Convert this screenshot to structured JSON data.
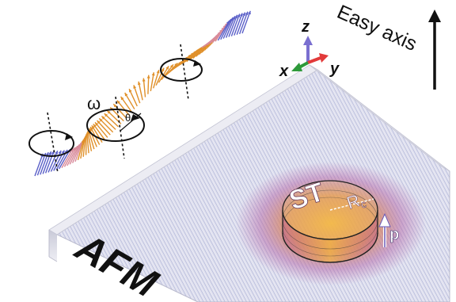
{
  "labels": {
    "easy_axis": "Easy axis",
    "afm": "AFM",
    "st": "ST",
    "radius": "R",
    "radius_sub": "c",
    "p": "p",
    "omega": "ω",
    "theta": "θ",
    "axis_z": "z",
    "axis_x": "x",
    "axis_y": "y"
  },
  "colors": {
    "spin_blue": "#5a5fc8",
    "spin_orange": "#e0902a",
    "spin_pink": "#d88a9a",
    "axis_z": "#7a6fd0",
    "axis_x": "#2e9a3a",
    "axis_y": "#e23a3a",
    "disk_core": "#f2b43a",
    "disk_edge": "#9a4fa8",
    "film_top": "#dcdcec",
    "film_edge": "#cfd0dc"
  },
  "icons": {
    "easy_axis_arrow": "up-arrow-icon",
    "p_arrow": "polarization-arrow-icon",
    "precession_rings": "circular-arrow-icon"
  }
}
